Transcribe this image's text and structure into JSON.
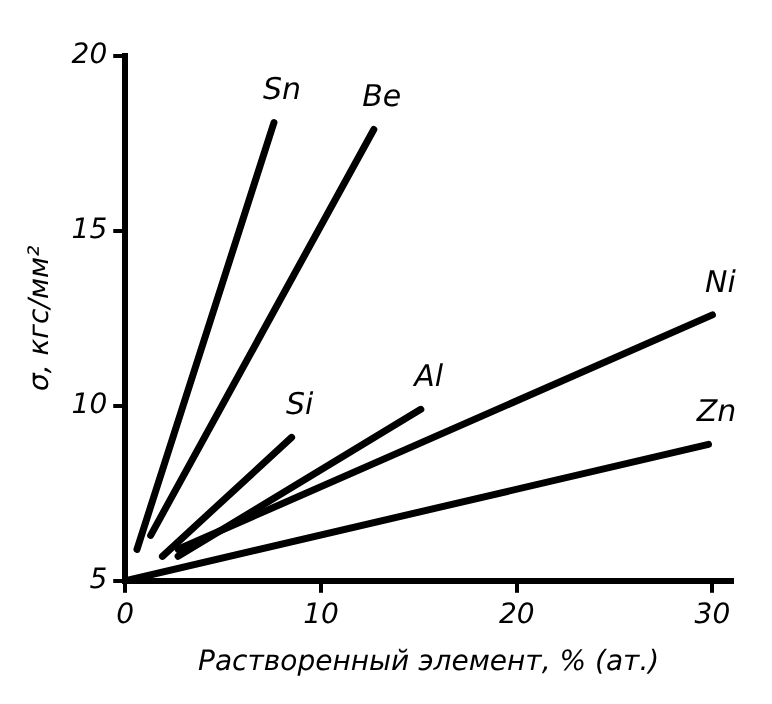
{
  "chart_data": {
    "type": "line",
    "xlabel": "Растворенный элемент, % (ат.)",
    "ylabel": "σ, кгс/мм²",
    "xlim": [
      0,
      31
    ],
    "ylim": [
      5,
      20
    ],
    "xticks": [
      0,
      10,
      20,
      30
    ],
    "yticks": [
      5,
      10,
      15,
      20
    ],
    "legend": false,
    "marker": "none",
    "line_style": "solid",
    "series": [
      {
        "name": "Sn",
        "color": "#000000",
        "x": [
          0.6,
          7.6
        ],
        "values": [
          5.9,
          18.1
        ]
      },
      {
        "name": "Be",
        "color": "#000000",
        "x": [
          1.3,
          12.7
        ],
        "values": [
          6.3,
          17.9
        ]
      },
      {
        "name": "Si",
        "color": "#000000",
        "x": [
          1.9,
          8.5
        ],
        "values": [
          5.7,
          9.1
        ]
      },
      {
        "name": "Al",
        "color": "#000000",
        "x": [
          2.7,
          15.1
        ],
        "values": [
          5.7,
          9.9
        ]
      },
      {
        "name": "Ni",
        "color": "#000000",
        "x": [
          2.7,
          30
        ],
        "values": [
          5.9,
          12.6
        ]
      },
      {
        "name": "Zn",
        "color": "#000000",
        "x": [
          0,
          29.8
        ],
        "values": [
          5,
          8.9
        ]
      }
    ]
  }
}
